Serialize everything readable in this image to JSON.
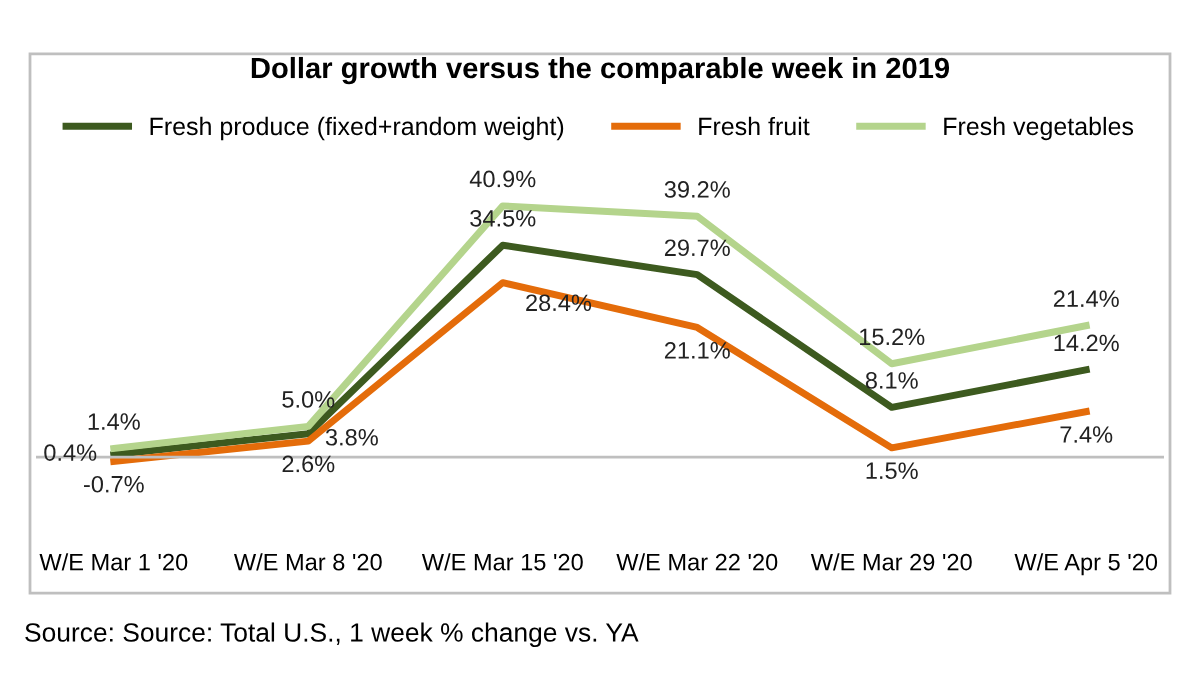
{
  "chart_data": {
    "type": "line",
    "title": "Dollar growth versus the comparable week in 2019",
    "categories": [
      "W/E Mar 1 '20",
      "W/E Mar 8 '20",
      "W/E Mar 15 '20",
      "W/E Mar 22 '20",
      "W/E Mar 29 '20",
      "W/E Apr 5 '20"
    ],
    "series": [
      {
        "name": "Fresh produce (fixed+random weight)",
        "color": "#3d5a1f",
        "values": [
          0.4,
          3.8,
          34.5,
          29.7,
          8.1,
          14.2
        ],
        "value_labels": [
          "0.4%",
          "3.8%",
          "34.5%",
          "29.7%",
          "8.1%",
          "14.2%"
        ]
      },
      {
        "name": "Fresh fruit",
        "color": "#e46c0a",
        "values": [
          -0.7,
          2.6,
          28.4,
          21.1,
          1.5,
          7.4
        ],
        "value_labels": [
          "-0.7%",
          "2.6%",
          "28.4%",
          "21.1%",
          "1.5%",
          "7.4%"
        ]
      },
      {
        "name": "Fresh vegetables",
        "color": "#b4d48c",
        "values": [
          1.4,
          5.0,
          40.9,
          39.2,
          15.2,
          21.4
        ],
        "value_labels": [
          "1.4%",
          "5.0%",
          "40.9%",
          "39.2%",
          "15.2%",
          "21.4%"
        ]
      }
    ],
    "legend": "top",
    "grid": false,
    "marker": "none",
    "line_style": "solid",
    "annotations": [
      "Source: Source: Total U.S., 1 week % change vs. YA"
    ]
  }
}
